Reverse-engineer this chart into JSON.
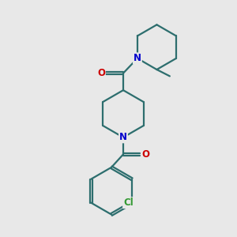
{
  "background_color": "#e8e8e8",
  "bond_color": "#2d6e6e",
  "N_color": "#0000cc",
  "O_color": "#cc0000",
  "Cl_color": "#339933",
  "line_width": 1.6,
  "figsize": [
    3.0,
    3.0
  ],
  "dpi": 100,
  "xlim": [
    0,
    10
  ],
  "ylim": [
    0,
    10
  ]
}
